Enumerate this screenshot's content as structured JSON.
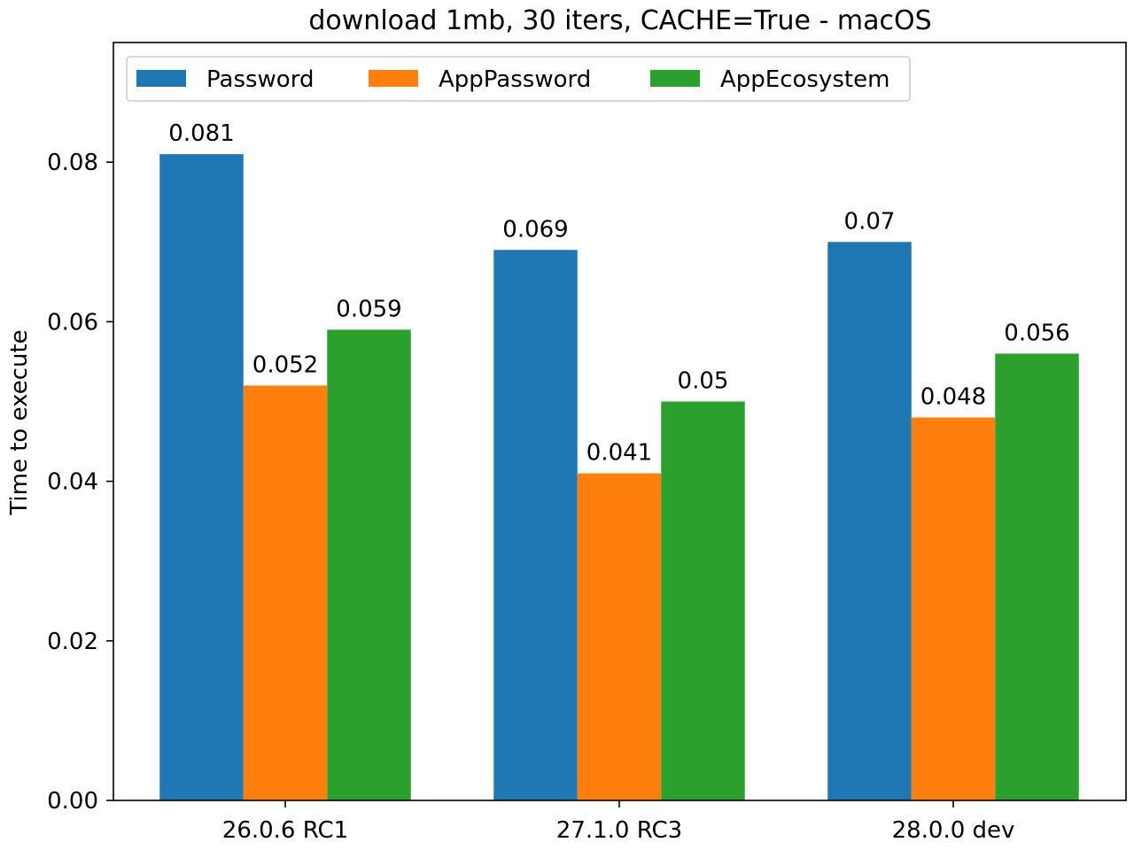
{
  "chart_data": {
    "type": "bar",
    "title": "download 1mb, 30 iters, CACHE=True - macOS",
    "xlabel": "",
    "ylabel": "Time to execute",
    "categories": [
      "26.0.6 RC1",
      "27.1.0 RC3",
      "28.0.0 dev"
    ],
    "series": [
      {
        "name": "Password",
        "values": [
          0.081,
          0.069,
          0.07
        ],
        "labels": [
          "0.081",
          "0.069",
          "0.07"
        ],
        "color": "#1f77b4"
      },
      {
        "name": "AppPassword",
        "values": [
          0.052,
          0.041,
          0.048
        ],
        "labels": [
          "0.052",
          "0.041",
          "0.048"
        ],
        "color": "#ff7f0e"
      },
      {
        "name": "AppEcosystem",
        "values": [
          0.059,
          0.05,
          0.056
        ],
        "labels": [
          "0.059",
          "0.05",
          "0.056"
        ],
        "color": "#2ca02c"
      }
    ],
    "ylim": [
      0,
      0.095
    ],
    "yticks": [
      0.0,
      0.02,
      0.04,
      0.06,
      0.08
    ],
    "ytick_labels": [
      "0.00",
      "0.02",
      "0.04",
      "0.06",
      "0.08"
    ],
    "grid": false,
    "legend_position": "top-left"
  }
}
